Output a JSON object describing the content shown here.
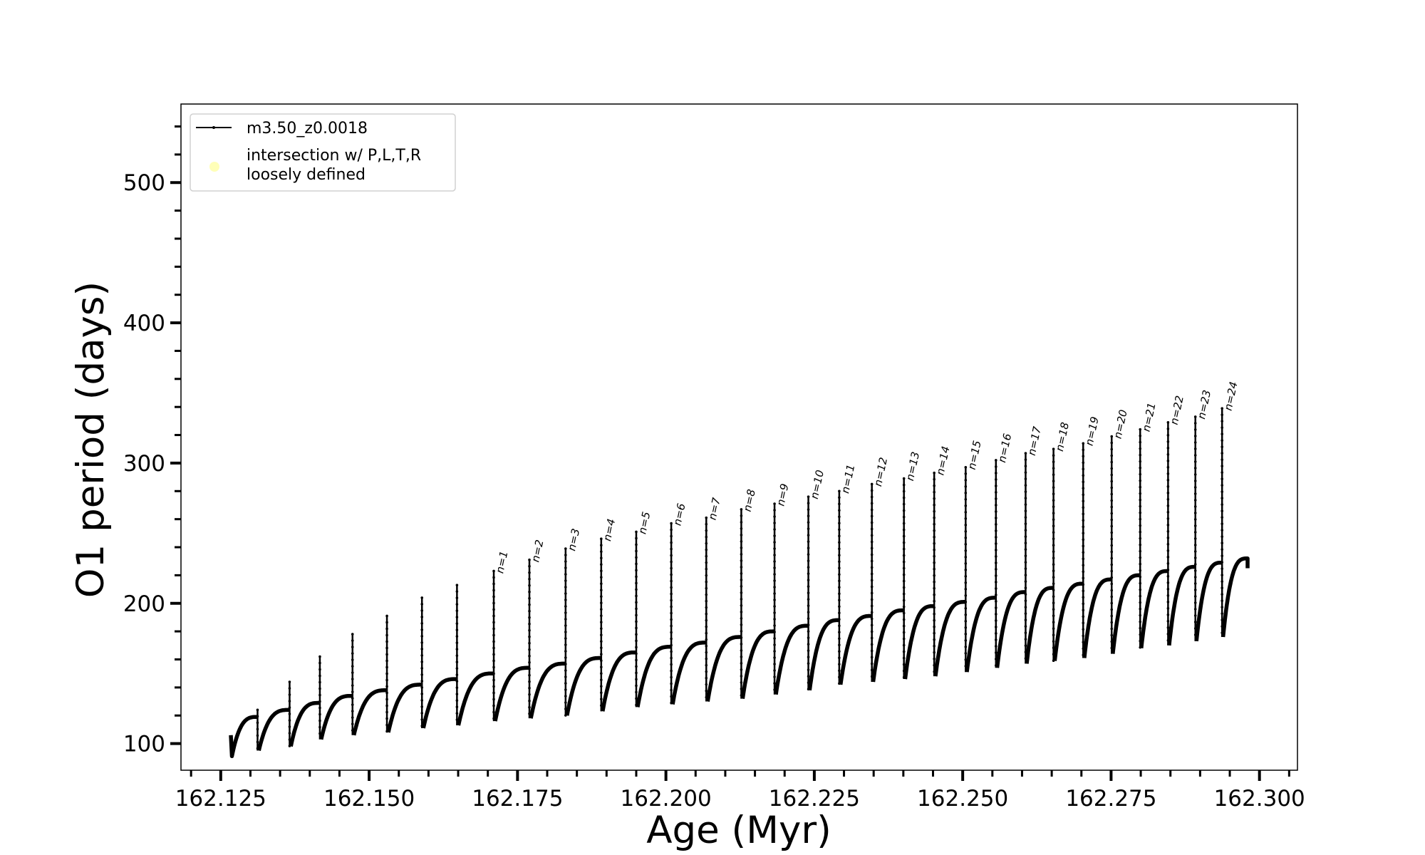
{
  "chart_data": {
    "type": "line",
    "title": "",
    "xlabel": "Age (Myr)",
    "ylabel": "O1 period (days)",
    "xlim": [
      162.1183,
      162.3064
    ],
    "ylim": [
      81,
      556
    ],
    "grid": false,
    "legend_position": "top-left",
    "x_ticks": [
      162.125,
      162.15,
      162.175,
      162.2,
      162.225,
      162.25,
      162.275,
      162.3
    ],
    "x_tick_labels": [
      "162.125",
      "162.150",
      "162.175",
      "162.200",
      "162.225",
      "162.250",
      "162.275",
      "162.300"
    ],
    "x_minor_step": 0.005,
    "y_ticks": [
      100,
      200,
      300,
      400,
      500
    ],
    "y_tick_labels": [
      "100",
      "200",
      "300",
      "400",
      "500"
    ],
    "y_minor_step": 20,
    "legend": [
      {
        "label": "m3.50_z0.0018",
        "marker": "line-dot",
        "color": "#000000"
      },
      {
        "label_lines": [
          "intersection w/ P,L,T,R",
          "loosely defined"
        ],
        "marker": "circle",
        "color": "#ffffb0"
      }
    ],
    "series": [
      {
        "name": "m3.50_z0.0018",
        "color": "#000000",
        "start_age": 162.1267,
        "start_value": 106,
        "end_age": 162.298,
        "end_value": 225,
        "spike_ages": [
          162.1312,
          162.1366,
          162.1417,
          162.1472,
          162.153,
          162.1589,
          162.1648,
          162.171,
          162.177,
          162.1831,
          162.1891,
          162.195,
          162.2009,
          162.2068,
          162.2127,
          162.2183,
          162.224,
          162.2292,
          162.2347,
          162.2401,
          162.2452,
          162.2505,
          162.2556,
          162.2606,
          162.2653,
          162.2703,
          162.2751,
          162.2799,
          162.2846,
          162.2892,
          162.2937
        ],
        "spike_peaks": [
          124,
          144,
          162,
          178,
          191,
          204,
          213,
          223,
          231,
          239,
          246,
          251,
          257,
          261,
          267,
          271,
          276,
          280,
          285,
          289,
          293,
          297,
          302,
          307,
          310,
          314,
          319,
          324,
          329,
          333,
          339
        ],
        "cycle_minima": [
          91,
          95,
          98,
          103,
          106,
          108,
          111,
          113,
          116,
          118,
          120,
          123,
          126,
          128,
          130,
          132,
          135,
          138,
          142,
          144,
          146,
          148,
          151,
          154,
          157,
          159,
          161,
          164,
          168,
          170,
          173,
          176
        ],
        "cycle_plateaus": [
          119,
          124,
          129,
          134,
          138,
          142,
          146,
          150,
          154,
          157,
          161,
          165,
          169,
          172,
          176,
          180,
          184,
          188,
          191,
          195,
          198,
          201,
          204,
          208,
          211,
          214,
          217,
          220,
          223,
          226,
          229,
          232
        ]
      }
    ],
    "annotations": {
      "first_labeled_spike_index": 7,
      "labels": [
        "n=1",
        "n=2",
        "n=3",
        "n=4",
        "n=5",
        "n=6",
        "n=7",
        "n=8",
        "n=9",
        "n=10",
        "n=11",
        "n=12",
        "n=13",
        "n=14",
        "n=15",
        "n=16",
        "n=17",
        "n=18",
        "n=19",
        "n=20",
        "n=21",
        "n=22",
        "n=23",
        "n=24"
      ]
    }
  }
}
